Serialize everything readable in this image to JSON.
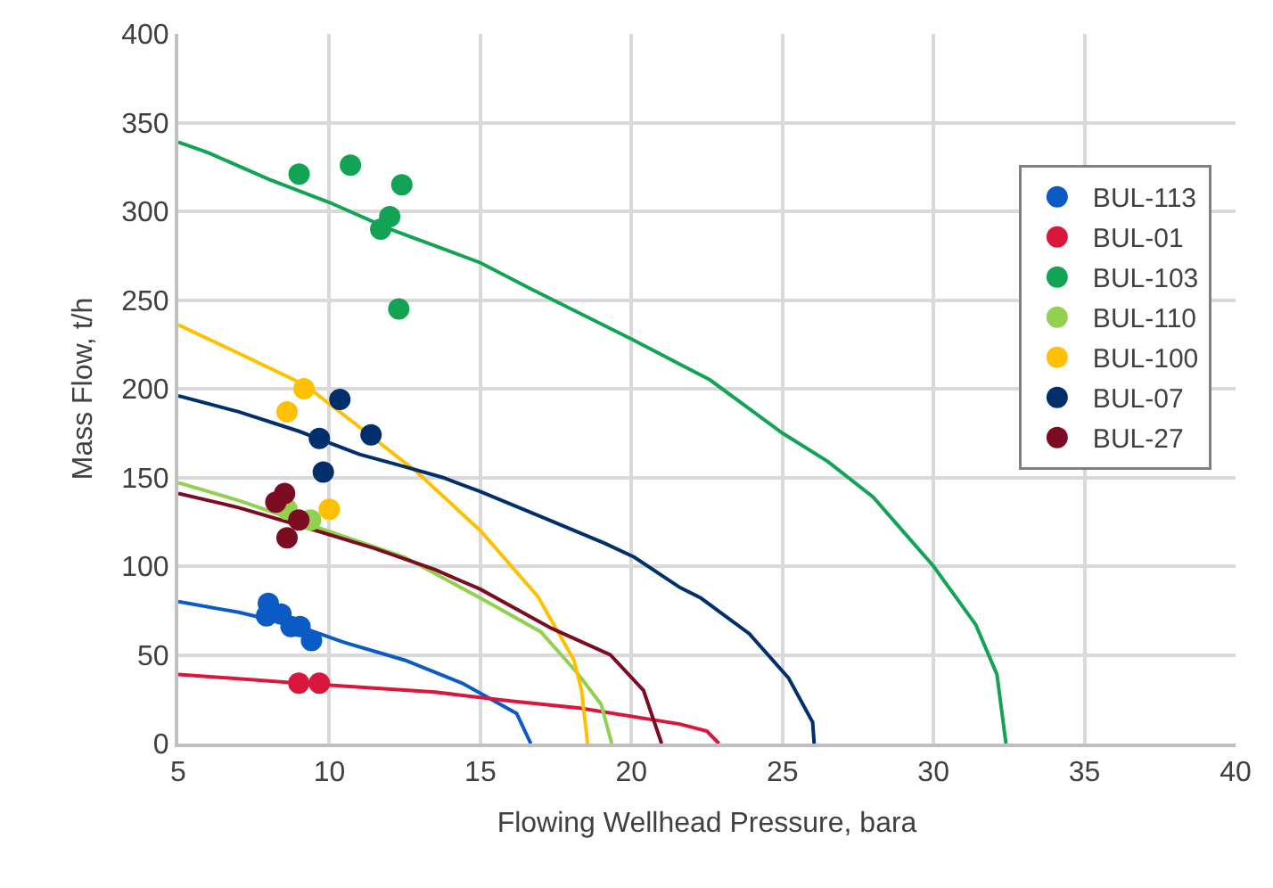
{
  "chart_data": {
    "type": "scatter",
    "xlabel": "Flowing Wellhead Pressure, bara",
    "ylabel": "Mass Flow, t/h",
    "xlim": [
      5,
      40
    ],
    "ylim": [
      0,
      400
    ],
    "xticks": [
      5,
      10,
      15,
      20,
      25,
      30,
      35,
      40
    ],
    "yticks": [
      0,
      50,
      100,
      150,
      200,
      250,
      300,
      350,
      400
    ],
    "grid": true,
    "legend": "right",
    "marker": "circle",
    "line_style": "solid",
    "series": [
      {
        "type": "line",
        "marker": "none",
        "color": "#0a5bc4",
        "x": [
          5,
          7,
          9,
          10.5,
          12.5,
          14.4,
          16.2,
          16.67
        ],
        "values": [
          80,
          74,
          66,
          57,
          47,
          34,
          17,
          0
        ]
      },
      {
        "type": "line",
        "marker": "none",
        "color": "#d9163c",
        "x": [
          5,
          9,
          13.5,
          16,
          18.3,
          21.6,
          22.5,
          22.9
        ],
        "values": [
          39,
          34,
          29,
          24,
          20,
          11,
          7,
          0
        ]
      },
      {
        "type": "line",
        "marker": "none",
        "color": "#12a454",
        "x": [
          5,
          6,
          8,
          10,
          12,
          15,
          16.7,
          20,
          22.6,
          25,
          26.5,
          28,
          30,
          31.4,
          32.1,
          32.4
        ],
        "values": [
          339,
          333,
          318,
          305,
          290,
          271,
          256,
          228,
          205,
          175,
          159,
          139,
          100,
          67,
          39,
          0
        ]
      },
      {
        "type": "line",
        "marker": "none",
        "color": "#92d050",
        "x": [
          5,
          7,
          9.4,
          12.5,
          15,
          17,
          18.2,
          19,
          19.35
        ],
        "values": [
          147,
          137,
          123,
          105,
          82,
          63,
          40,
          22,
          0
        ]
      },
      {
        "type": "line",
        "marker": "none",
        "color": "#ffc000",
        "x": [
          5,
          7,
          9.2,
          11.1,
          12.9,
          15,
          16.9,
          18.1,
          18.35,
          18.55
        ],
        "values": [
          236,
          220,
          202,
          177,
          153,
          120,
          83,
          47,
          30,
          0
        ]
      },
      {
        "type": "line",
        "marker": "none",
        "color": "#002f6c",
        "x": [
          5,
          7,
          9,
          11,
          12.3,
          13.75,
          15,
          17,
          19.1,
          20.1,
          21.6,
          22.3,
          23.9,
          25.2,
          26,
          26.05
        ],
        "values": [
          196,
          187,
          176,
          163,
          157,
          150,
          142,
          128,
          113,
          105,
          88,
          82,
          62,
          37,
          12,
          0
        ]
      },
      {
        "type": "line",
        "marker": "none",
        "color": "#7b0c22",
        "x": [
          5,
          7,
          8.6,
          11.5,
          13.5,
          15,
          17.35,
          19.3,
          20.4,
          21
        ],
        "values": [
          141,
          133,
          125,
          110,
          98,
          87,
          65,
          50,
          30,
          0
        ]
      },
      {
        "name": "BUL-113",
        "color": "#0a5bc4",
        "x": [
          7.98,
          7.92,
          8.4,
          8.73,
          9.03,
          9.41
        ],
        "values": [
          79,
          72,
          73,
          66,
          66,
          58
        ]
      },
      {
        "name": "BUL-01",
        "color": "#d9163c",
        "x": [
          8.99,
          9.67
        ],
        "values": [
          34,
          34
        ]
      },
      {
        "name": "BUL-103",
        "color": "#12a454",
        "x": [
          9.0,
          10.7,
          12.4,
          12.0,
          11.7,
          12.3
        ],
        "values": [
          321,
          326,
          315,
          297,
          290,
          245
        ]
      },
      {
        "name": "BUL-110",
        "color": "#92d050",
        "x": [
          8.6,
          9.38
        ],
        "values": [
          132,
          126
        ]
      },
      {
        "name": "BUL-100",
        "color": "#ffc000",
        "x": [
          9.16,
          8.6,
          10.0
        ],
        "values": [
          200,
          187,
          132
        ]
      },
      {
        "name": "BUL-07",
        "color": "#002f6c",
        "x": [
          10.35,
          9.67,
          11.38,
          9.8
        ],
        "values": [
          194,
          172,
          174,
          153
        ]
      },
      {
        "name": "BUL-27",
        "color": "#7b0c22",
        "x": [
          8.52,
          8.23,
          8.99,
          8.6
        ],
        "values": [
          141,
          136,
          126,
          116
        ]
      }
    ]
  }
}
